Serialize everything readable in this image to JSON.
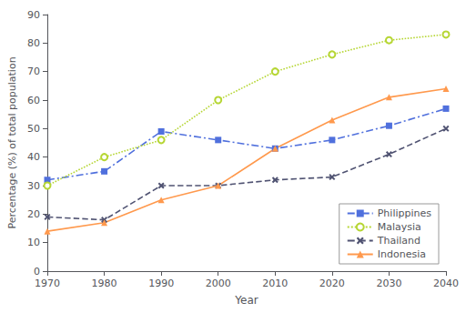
{
  "chart_data": {
    "type": "line",
    "xlabel": "Year",
    "ylabel": "Percentage (%) of total population",
    "x": [
      1970,
      1980,
      1990,
      2000,
      2010,
      2020,
      2030,
      2040
    ],
    "series": [
      {
        "name": "Philippines",
        "values": [
          32,
          35,
          49,
          46,
          43,
          46,
          51,
          57
        ],
        "marker": "square",
        "line_style": "dashdot"
      },
      {
        "name": "Malaysia",
        "values": [
          30,
          40,
          46,
          60,
          70,
          76,
          81,
          83
        ],
        "marker": "circle",
        "line_style": "dotted"
      },
      {
        "name": "Thailand",
        "values": [
          19,
          18,
          30,
          30,
          32,
          33,
          41,
          50
        ],
        "marker": "x",
        "line_style": "dashed"
      },
      {
        "name": "Indonesia",
        "values": [
          14,
          17,
          25,
          30,
          43,
          53,
          61,
          64
        ],
        "marker": "triangle",
        "line_style": "solid"
      }
    ],
    "xlim": [
      1970,
      2040
    ],
    "xticks": [
      1970,
      1980,
      1990,
      2000,
      2010,
      2020,
      2030,
      2040
    ],
    "ylim": [
      0,
      90
    ],
    "yticks": [
      0,
      10,
      20,
      30,
      40,
      50,
      60,
      70,
      80,
      90
    ],
    "grid": false,
    "legend": "lower right"
  }
}
